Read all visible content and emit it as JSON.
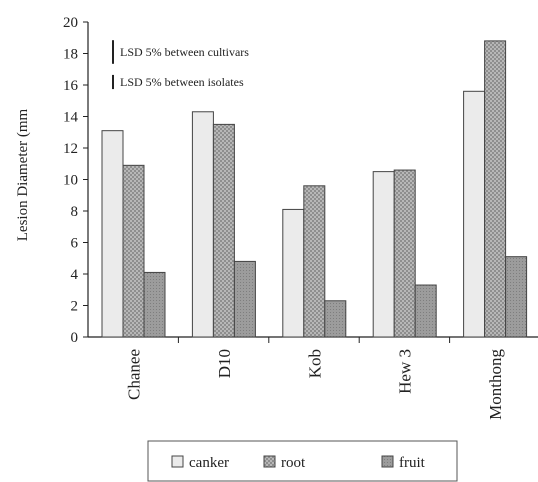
{
  "chart_data": {
    "type": "bar",
    "title": "",
    "ylabel": "Lesion Diameter (mm",
    "xlabel": "",
    "ylim": [
      0,
      20
    ],
    "yticks": [
      0,
      2,
      4,
      6,
      8,
      10,
      12,
      14,
      16,
      18,
      20
    ],
    "grid": false,
    "legend_position": "bottom",
    "categories": [
      "Chanee",
      "D10",
      "Kob",
      "Hew 3",
      "Monthong"
    ],
    "series": [
      {
        "name": "canker",
        "values": [
          13.1,
          14.3,
          8.1,
          10.5,
          15.6
        ],
        "color": "#ebebeb"
      },
      {
        "name": "root",
        "values": [
          10.9,
          13.5,
          9.6,
          10.6,
          18.8
        ],
        "color": "#b2b2b2"
      },
      {
        "name": "fruit",
        "values": [
          4.1,
          4.8,
          2.3,
          3.3,
          5.1
        ],
        "color": "#9a9a9a"
      }
    ],
    "annotations": [
      {
        "text": "LSD 5% between cultivars",
        "bar_value": 1.5
      },
      {
        "text": "LSD 5% between isolates",
        "bar_value": 0.9
      }
    ]
  }
}
